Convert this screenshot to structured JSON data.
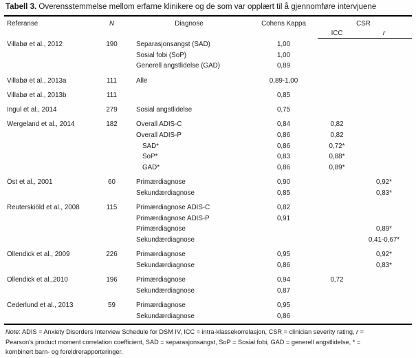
{
  "page": {
    "background": "#fefefe",
    "text_color": "#1c1c1c",
    "rule_color": "#000000"
  },
  "title": {
    "label": "Tabell 3.",
    "text": "Overensstemmelse mellom erfarne klinikere og de som var opplært til å gjennomføre intervjuene"
  },
  "table": {
    "headers": {
      "referanse": "Referanse",
      "n": "N",
      "diagnose": "Diagnose",
      "kappa": "Cohens Kappa",
      "csr": "CSR",
      "icc": "ICC",
      "r": "r"
    },
    "groups": [
      {
        "ref": "Villabø et al., 2012",
        "n": "190",
        "rows": [
          {
            "diag": "Separasjonsangst (SAD)",
            "kappa": "1,00",
            "icc": "",
            "r": "",
            "indent": false
          },
          {
            "diag": "Sosial fobi (SoP)",
            "kappa": "1,00",
            "icc": "",
            "r": "",
            "indent": false
          },
          {
            "diag": "Generell angstlidelse (GAD)",
            "kappa": "0,89",
            "icc": "",
            "r": "",
            "indent": false
          }
        ]
      },
      {
        "ref": "Villabø et al., 2013a",
        "n": "111",
        "rows": [
          {
            "diag": "Alle",
            "kappa": "0,89-1,00",
            "icc": "",
            "r": "",
            "indent": false
          }
        ]
      },
      {
        "ref": "Villabø et al., 2013b",
        "n": "111",
        "rows": [
          {
            "diag": "",
            "kappa": "0,85",
            "icc": "",
            "r": "",
            "indent": false
          }
        ]
      },
      {
        "ref": "Ingul et al., 2014",
        "n": "279",
        "rows": [
          {
            "diag": "Sosial angstlidelse",
            "kappa": "0,75",
            "icc": "",
            "r": "",
            "indent": false
          }
        ]
      },
      {
        "ref": "Wergeland et al., 2014",
        "n": "182",
        "rows": [
          {
            "diag": "Overall ADIS-C",
            "kappa": "0,84",
            "icc": "0,82",
            "r": "",
            "indent": false
          },
          {
            "diag": "Overall ADIS-P",
            "kappa": "0,86",
            "icc": "0,82",
            "r": "",
            "indent": false
          },
          {
            "diag": "SAD*",
            "kappa": "0,86",
            "icc": "0,72*",
            "r": "",
            "indent": true
          },
          {
            "diag": "SoP*",
            "kappa": "0,83",
            "icc": "0,88*",
            "r": "",
            "indent": true
          },
          {
            "diag": "GAD*",
            "kappa": "0,86",
            "icc": "0,89*",
            "r": "",
            "indent": true
          }
        ]
      },
      {
        "ref": "Öst et al., 2001",
        "n": "60",
        "rows": [
          {
            "diag": "Primærdiagnose",
            "kappa": "0,90",
            "icc": "",
            "r": "0,92*",
            "indent": false
          },
          {
            "diag": "Sekundærdiagnose",
            "kappa": "0,85",
            "icc": "",
            "r": "0,83*",
            "indent": false
          }
        ]
      },
      {
        "ref": "Reuterskiöld et al., 2008",
        "n": "115",
        "rows": [
          {
            "diag": "Primærdiagnose ADIS-C",
            "kappa": "0,82",
            "icc": "",
            "r": "",
            "indent": false
          },
          {
            "diag": "Primærdiagnose ADIS-P",
            "kappa": "0,91",
            "icc": "",
            "r": "",
            "indent": false
          },
          {
            "diag": "Primærdiagnose",
            "kappa": "",
            "icc": "",
            "r": "0,89*",
            "indent": false
          },
          {
            "diag": "Sekundærdiagnose",
            "kappa": "",
            "icc": "",
            "r": "0,41-0,67*",
            "indent": false
          }
        ]
      },
      {
        "ref": "Ollendick et al., 2009",
        "n": "226",
        "rows": [
          {
            "diag": "Primærdiagnose",
            "kappa": "0,95",
            "icc": "",
            "r": "0,92*",
            "indent": false
          },
          {
            "diag": "Sekundærdiagnose",
            "kappa": "0,86",
            "icc": "",
            "r": "0,83*",
            "indent": false
          }
        ]
      },
      {
        "ref": "Ollendick et al.,2010",
        "n": "196",
        "rows": [
          {
            "diag": "Primærdiagnose",
            "kappa": "0,94",
            "icc": "0,72",
            "r": "",
            "indent": false
          },
          {
            "diag": "Sekundærdiagnose",
            "kappa": "0,87",
            "icc": "",
            "r": "",
            "indent": false
          }
        ]
      },
      {
        "ref": "Cederlund et al., 2013",
        "n": "59",
        "rows": [
          {
            "diag": "Primærdiagnose",
            "kappa": "0,95",
            "icc": "",
            "r": "",
            "indent": false
          },
          {
            "diag": "Sekundærdiagnose",
            "kappa": "0,86",
            "icc": "",
            "r": "",
            "indent": false
          }
        ]
      }
    ]
  },
  "note": {
    "parts": [
      {
        "t": "Note",
        "i": true
      },
      {
        "t": ": ADIS = Anxiety Disorders Interview Schedule for DSM IV, ICC = intra-klassekorrelasjon, CSR = clinician severity rating, "
      },
      {
        "t": "r",
        "i": true
      },
      {
        "t": " ="
      },
      {
        "br": true
      },
      {
        "t": "Pearson's product moment correlation coefficient, SAD = separasjonsangst, SoP = Sosial fobi, GAD = generell angstlidelse, * ="
      },
      {
        "br": true
      },
      {
        "t": "kombinert barn- og foreldrerapporteringer."
      }
    ]
  }
}
